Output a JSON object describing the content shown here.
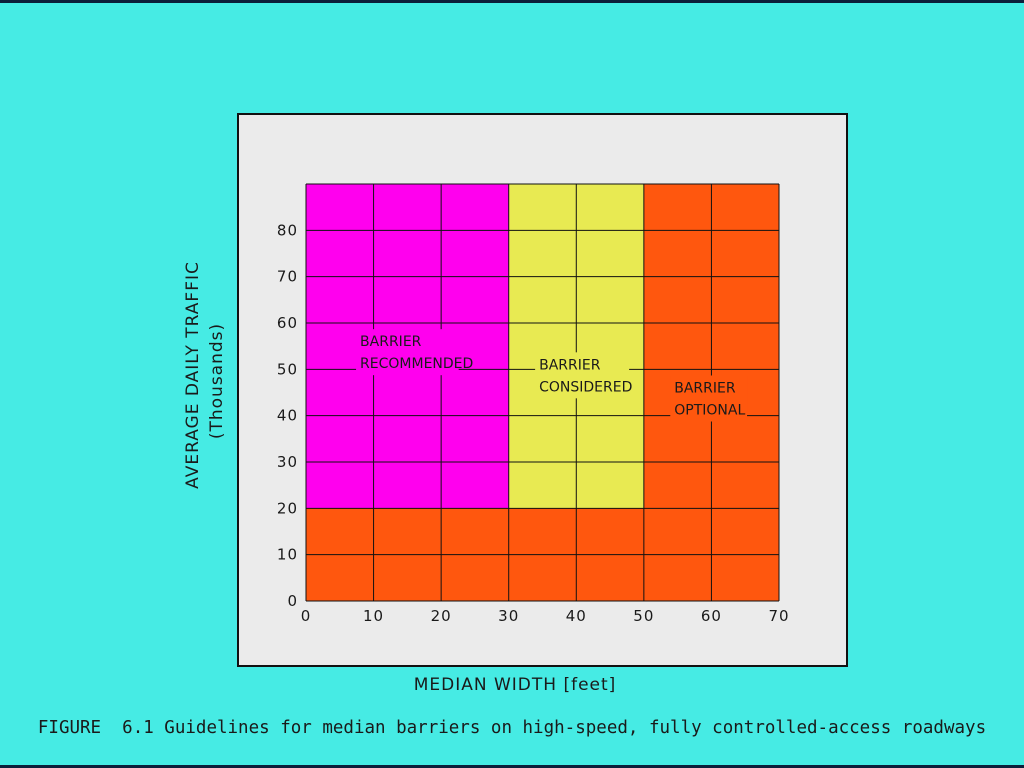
{
  "chart_data": {
    "type": "heatmap",
    "title": "",
    "xlabel": "MEDIAN WIDTH [feet]",
    "ylabel": "AVERAGE DAILY TRAFFIC",
    "ylabel_sub": "(Thousands)",
    "xlim": [
      0,
      70
    ],
    "ylim": [
      0,
      90
    ],
    "x_ticks": [
      0,
      10,
      20,
      30,
      40,
      50,
      60,
      70
    ],
    "y_ticks": [
      0,
      10,
      20,
      30,
      40,
      50,
      60,
      70,
      80
    ],
    "grid": true,
    "regions": [
      {
        "label_lines": [
          "BARRIER",
          "RECOMMENDED"
        ],
        "x_range": [
          0,
          30
        ],
        "y_range": [
          20,
          90
        ],
        "color": "#ff00ee",
        "label_at": [
          8,
          55
        ]
      },
      {
        "label_lines": [
          "BARRIER",
          "CONSIDERED"
        ],
        "x_range": [
          30,
          50
        ],
        "y_range": [
          20,
          90
        ],
        "color": "#e8ea52",
        "label_at": [
          34.5,
          50
        ]
      },
      {
        "label_lines": [
          "BARRIER",
          "OPTIONAL"
        ],
        "x_range": [
          50,
          70
        ],
        "y_range": [
          20,
          90
        ],
        "color": "#ff570e",
        "label_at": [
          54.5,
          45
        ]
      },
      {
        "label_lines": [],
        "x_range": [
          0,
          70
        ],
        "y_range": [
          0,
          20
        ],
        "color": "#ff570e",
        "label_at": null
      }
    ]
  },
  "caption": "FIGURE  6.1 Guidelines for median barriers on high-speed, fully controlled-access roadways",
  "colors": {
    "background": "#46ebe4",
    "panel": "#ebebeb",
    "grid": "#111111"
  }
}
